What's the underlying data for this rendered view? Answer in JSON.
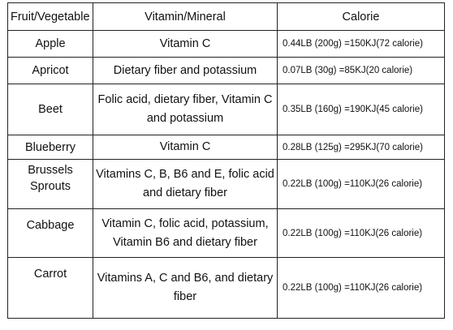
{
  "table": {
    "headers": [
      "Fruit/Vegetable",
      "Vitamin/Mineral",
      "Calorie"
    ],
    "rows": [
      {
        "name": "Apple",
        "vitamin": "Vitamin C",
        "calorie": "0.44LB (200g) =150KJ(72 calorie)"
      },
      {
        "name": "Apricot",
        "vitamin": "Dietary fiber and potassium",
        "calorie": "0.07LB (30g) =85KJ(20 calorie)"
      },
      {
        "name": "Beet",
        "vitamin_lines": [
          "Folic acid, dietary fiber, Vitamin C",
          "and potassium"
        ],
        "calorie": "0.35LB (160g) =190KJ(45 calorie)"
      },
      {
        "name": "Blueberry",
        "vitamin": "Vitamin C",
        "calorie": "0.28LB (125g) =295KJ(70 calorie)"
      },
      {
        "name": "Brussels Sprouts",
        "vitamin_lines": [
          "Vitamins C, B, B6 and E, folic acid",
          "and dietary fiber"
        ],
        "calorie": "0.22LB (100g) =110KJ(26 calorie)"
      },
      {
        "name": "Cabbage",
        "vitamin_lines": [
          "Vitamin C, folic acid, potassium,",
          "Vitamin B6 and dietary fiber"
        ],
        "calorie": "0.22LB (100g) =110KJ(26 calorie)"
      },
      {
        "name": "Carrot",
        "vitamin_lines": [
          "Vitamins A, C and B6, and dietary",
          "fiber"
        ],
        "calorie": "0.22LB (100g) =110KJ(26 calorie)"
      }
    ]
  }
}
